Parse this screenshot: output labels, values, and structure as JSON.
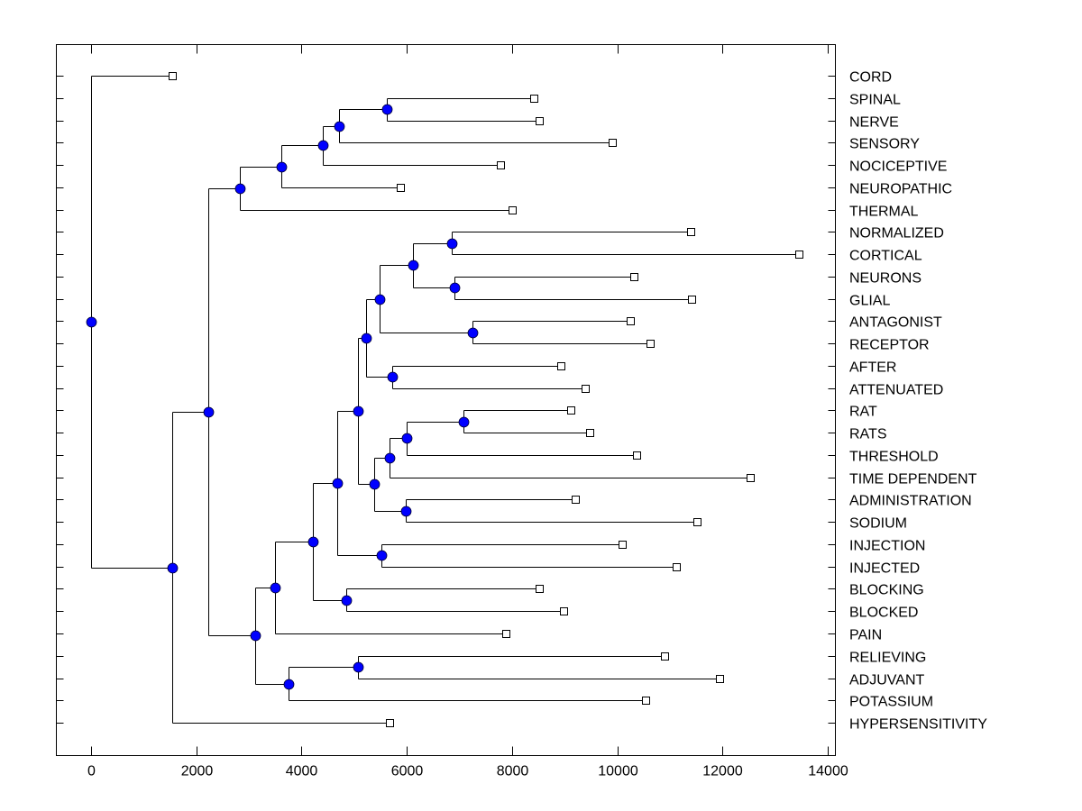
{
  "chart_data": {
    "type": "dendrogram",
    "title": "",
    "xlabel": "",
    "ylabel": "",
    "xlim": [
      -650,
      14150
    ],
    "xticks": [
      0,
      2000,
      4000,
      6000,
      8000,
      10000,
      12000,
      14000
    ],
    "xtick_labels": [
      "0",
      "2000",
      "4000",
      "6000",
      "8000",
      "10000",
      "12000",
      "14000"
    ],
    "grid": false,
    "colors": {
      "node_fill": "#0000ff",
      "leaf_fill": "#ffffff",
      "line": "#000000"
    },
    "leaves": [
      {
        "label": "CORD",
        "value": 1540
      },
      {
        "label": "SPINAL",
        "value": 8410
      },
      {
        "label": "NERVE",
        "value": 8520
      },
      {
        "label": "SENSORY",
        "value": 9900
      },
      {
        "label": "NOCICEPTIVE",
        "value": 7780
      },
      {
        "label": "NEUROPATHIC",
        "value": 5880
      },
      {
        "label": "THERMAL",
        "value": 8000
      },
      {
        "label": "NORMALIZED",
        "value": 11400
      },
      {
        "label": "CORTICAL",
        "value": 13450
      },
      {
        "label": "NEURONS",
        "value": 10320
      },
      {
        "label": "GLIAL",
        "value": 11410
      },
      {
        "label": "ANTAGONIST",
        "value": 10250
      },
      {
        "label": "RECEPTOR",
        "value": 10620
      },
      {
        "label": "AFTER",
        "value": 8930
      },
      {
        "label": "ATTENUATED",
        "value": 9390
      },
      {
        "label": "RAT",
        "value": 9120
      },
      {
        "label": "RATS",
        "value": 9480
      },
      {
        "label": "THRESHOLD",
        "value": 10370
      },
      {
        "label": "TIME DEPENDENT",
        "value": 12530
      },
      {
        "label": "ADMINISTRATION",
        "value": 9200
      },
      {
        "label": "SODIUM",
        "value": 11510
      },
      {
        "label": "INJECTION",
        "value": 10090
      },
      {
        "label": "INJECTED",
        "value": 11120
      },
      {
        "label": "BLOCKING",
        "value": 8520
      },
      {
        "label": "BLOCKED",
        "value": 8980
      },
      {
        "label": "PAIN",
        "value": 7880
      },
      {
        "label": "RELIEVING",
        "value": 10900
      },
      {
        "label": "ADJUVANT",
        "value": 11940
      },
      {
        "label": "POTASSIUM",
        "value": 10540
      },
      {
        "label": "HYPERSENSITIVITY",
        "value": 5670
      }
    ],
    "tree": {
      "value": 0,
      "children": [
        {
          "leaf": 0
        },
        {
          "value": 1540,
          "children": [
            {
              "value": 2230,
              "children": [
                {
                  "value": 2830,
                  "children": [
                    {
                      "value": 3620,
                      "children": [
                        {
                          "value": 4400,
                          "children": [
                            {
                              "value": 4710,
                              "children": [
                                {
                                  "value": 5620,
                                  "children": [
                                    {
                                      "leaf": 1
                                    },
                                    {
                                      "leaf": 2
                                    }
                                  ]
                                },
                                {
                                  "leaf": 3
                                }
                              ]
                            },
                            {
                              "leaf": 4
                            }
                          ]
                        },
                        {
                          "leaf": 5
                        }
                      ]
                    },
                    {
                      "leaf": 6
                    }
                  ]
                },
                {
                  "value": 3120,
                  "children": [
                    {
                      "value": 3500,
                      "children": [
                        {
                          "value": 4220,
                          "children": [
                            {
                              "value": 4680,
                              "children": [
                                {
                                  "value": 5070,
                                  "children": [
                                    {
                                      "value": 5230,
                                      "children": [
                                        {
                                          "value": 5480,
                                          "children": [
                                            {
                                              "value": 6120,
                                              "children": [
                                                {
                                                  "value": 6850,
                                                  "children": [
                                                    {
                                                      "leaf": 7
                                                    },
                                                    {
                                                      "leaf": 8
                                                    }
                                                  ]
                                                },
                                                {
                                                  "value": 6910,
                                                  "children": [
                                                    {
                                                      "leaf": 9
                                                    },
                                                    {
                                                      "leaf": 10
                                                    }
                                                  ]
                                                }
                                              ]
                                            },
                                            {
                                              "value": 7250,
                                              "children": [
                                                {
                                                  "leaf": 11
                                                },
                                                {
                                                  "leaf": 12
                                                }
                                              ]
                                            }
                                          ]
                                        },
                                        {
                                          "value": 5720,
                                          "children": [
                                            {
                                              "leaf": 13
                                            },
                                            {
                                              "leaf": 14
                                            }
                                          ]
                                        }
                                      ]
                                    },
                                    {
                                      "value": 5380,
                                      "children": [
                                        {
                                          "value": 5670,
                                          "children": [
                                            {
                                              "value": 6000,
                                              "children": [
                                                {
                                                  "value": 7080,
                                                  "children": [
                                                    {
                                                      "leaf": 15
                                                    },
                                                    {
                                                      "leaf": 16
                                                    }
                                                  ]
                                                },
                                                {
                                                  "leaf": 17
                                                }
                                              ]
                                            },
                                            {
                                              "leaf": 18
                                            }
                                          ]
                                        },
                                        {
                                          "value": 5980,
                                          "children": [
                                            {
                                              "leaf": 19
                                            },
                                            {
                                              "leaf": 20
                                            }
                                          ]
                                        }
                                      ]
                                    }
                                  ]
                                },
                                {
                                  "value": 5520,
                                  "children": [
                                    {
                                      "leaf": 21
                                    },
                                    {
                                      "leaf": 22
                                    }
                                  ]
                                }
                              ]
                            },
                            {
                              "value": 4850,
                              "children": [
                                {
                                  "leaf": 23
                                },
                                {
                                  "leaf": 24
                                }
                              ]
                            }
                          ]
                        },
                        {
                          "leaf": 25
                        }
                      ]
                    },
                    {
                      "value": 3750,
                      "children": [
                        {
                          "value": 5070,
                          "children": [
                            {
                              "leaf": 26
                            },
                            {
                              "leaf": 27
                            }
                          ]
                        },
                        {
                          "leaf": 28
                        }
                      ]
                    }
                  ]
                }
              ]
            },
            {
              "leaf": 29
            }
          ]
        }
      ]
    }
  }
}
